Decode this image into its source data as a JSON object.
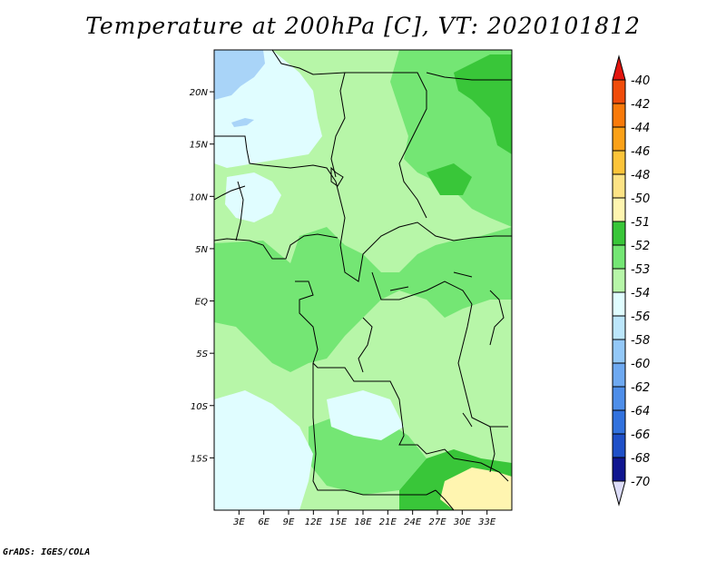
{
  "title": "Temperature at 200hPa [C], VT: 2020101812",
  "credit": "GrADS: IGES/COLA",
  "map": {
    "lon_range": [
      0,
      36
    ],
    "lat_range": [
      -20,
      24
    ],
    "y_ticks": [
      "20N",
      "15N",
      "10N",
      "5N",
      "EQ",
      "5S",
      "10S",
      "15S"
    ],
    "y_tick_values": [
      20,
      15,
      10,
      5,
      0,
      -5,
      -10,
      -15
    ],
    "x_ticks": [
      "3E",
      "6E",
      "9E",
      "12E",
      "15E",
      "18E",
      "21E",
      "24E",
      "27E",
      "30E",
      "33E"
    ],
    "x_tick_values": [
      3,
      6,
      9,
      12,
      15,
      18,
      21,
      24,
      27,
      30,
      33
    ]
  },
  "colorbar": {
    "labels": [
      "-40",
      "-42",
      "-44",
      "-46",
      "-48",
      "-50",
      "-51",
      "-52",
      "-53",
      "-54",
      "-56",
      "-58",
      "-60",
      "-62",
      "-64",
      "-66",
      "-68",
      "-70"
    ],
    "colors": [
      "#e31a1c",
      "#f04c0a",
      "#f97a0a",
      "#fba118",
      "#fcc43a",
      "#fde385",
      "#fff5b0",
      "#39c639",
      "#74e674",
      "#b7f6a8",
      "#e0fdff",
      "#bce6fb",
      "#93c8f8",
      "#6ea9f1",
      "#4e8ee9",
      "#3272de",
      "#1f50c8",
      "#101690",
      "#1a0d6e"
    ],
    "end_colors": {
      "top": "#e3150e",
      "bottom": "#dcdcf8"
    }
  },
  "fill_colors": {
    "cold_blue": "#a9d4f8",
    "very_light": "#e0fdff",
    "light_green": "#b7f6a8",
    "mid_green": "#74e674",
    "dark_green": "#39c639",
    "yellow": "#fff5b0"
  }
}
